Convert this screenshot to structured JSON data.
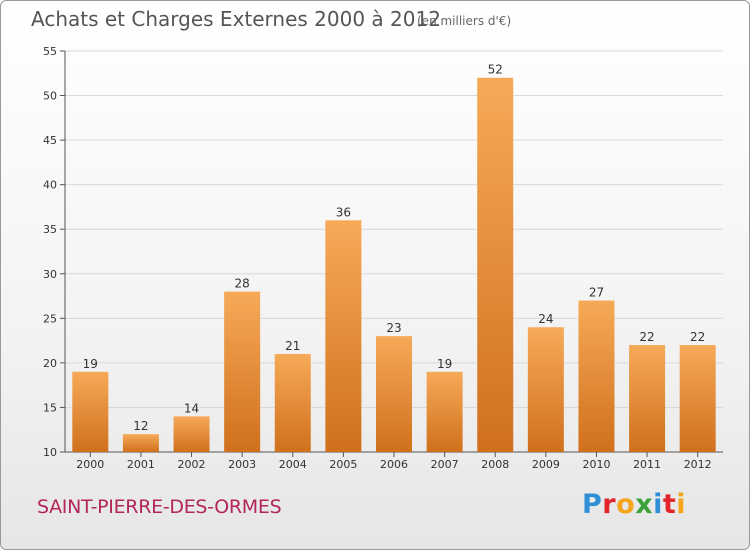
{
  "title": "Achats et Charges Externes 2000 à 2012",
  "unit": "(en milliers d'€)",
  "commune": "SAINT-PIERRE-DES-ORMES",
  "logo": {
    "text": "Proxiti",
    "letters": [
      {
        "char": "P",
        "color": "#2f8fd6"
      },
      {
        "char": "r",
        "color": "#e3242b"
      },
      {
        "char": "o",
        "color": "#f4a51c"
      },
      {
        "char": "x",
        "color": "#3da23a"
      },
      {
        "char": "i",
        "color": "#2f8fd6"
      },
      {
        "char": "t",
        "color": "#e3242b"
      },
      {
        "char": "i",
        "color": "#f4a51c"
      }
    ]
  },
  "colors": {
    "bar_light": "#f6aa58",
    "bar_dark": "#d0701c",
    "axis": "#555555",
    "grid": "#d9d9d9",
    "commune": "#b3265b"
  },
  "chart_data": {
    "type": "bar",
    "categories": [
      "2000",
      "2001",
      "2002",
      "2003",
      "2004",
      "2005",
      "2006",
      "2007",
      "2008",
      "2009",
      "2010",
      "2011",
      "2012"
    ],
    "values": [
      19,
      12,
      14,
      28,
      21,
      36,
      23,
      19,
      52,
      24,
      27,
      22,
      22
    ],
    "ylim": [
      10,
      55
    ],
    "yticks": [
      10,
      15,
      20,
      25,
      30,
      35,
      40,
      45,
      50,
      55
    ],
    "grid": true,
    "legend": "none"
  }
}
